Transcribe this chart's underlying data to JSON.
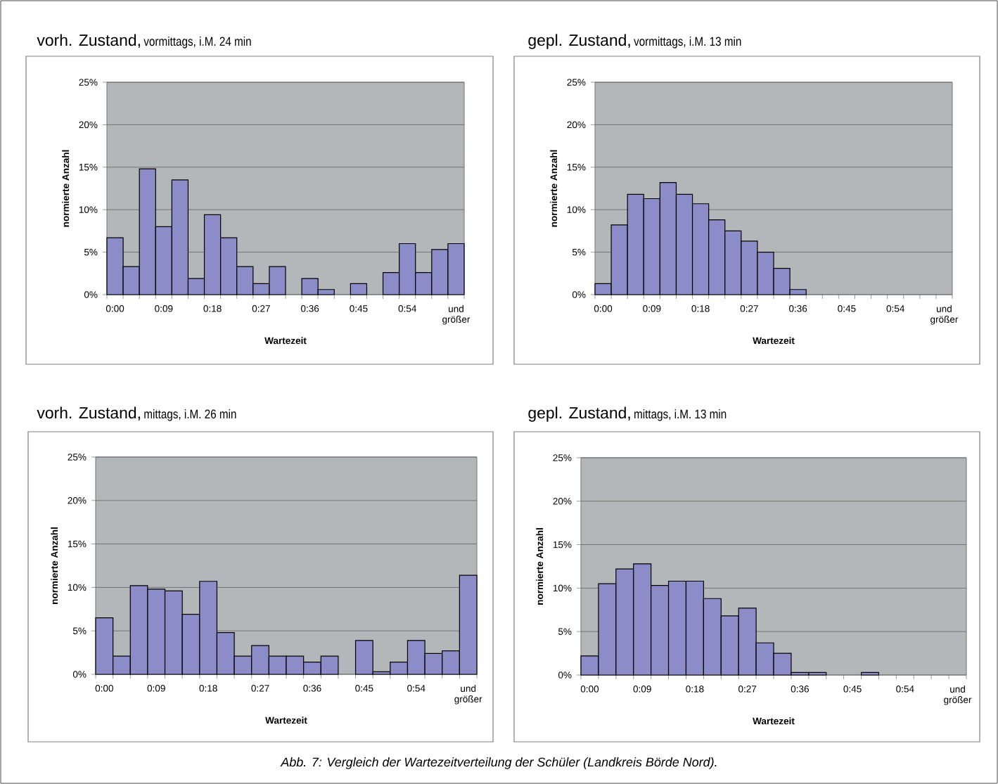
{
  "chart_data": [
    {
      "type": "bar",
      "title": "vorh. Zustand,",
      "subtitle": "vormittags, i.M. 24 min",
      "xlabel": "Wartezeit",
      "ylabel": "normierte Anzahl",
      "color": "#8c8cc8",
      "grid": "y",
      "categories": [
        "0:00",
        null,
        null,
        "0:09",
        null,
        null,
        "0:18",
        null,
        null,
        "0:27",
        null,
        null,
        "0:36",
        null,
        null,
        "0:45",
        null,
        null,
        "0:54",
        null,
        null,
        "und größer"
      ],
      "values": [
        6.7,
        3.3,
        14.8,
        8.0,
        13.5,
        1.9,
        9.4,
        6.7,
        3.3,
        1.3,
        3.3,
        0,
        1.9,
        0.6,
        0,
        1.3,
        0,
        2.6,
        6.0,
        2.6,
        5.3,
        6.0
      ],
      "ylim": [
        0,
        25
      ],
      "yticks": [
        {
          "value": 0,
          "label": "0%"
        },
        {
          "value": 5,
          "label": "5%"
        },
        {
          "value": 10,
          "label": "10%"
        },
        {
          "value": 15,
          "label": "15%"
        },
        {
          "value": 20,
          "label": "20%"
        },
        {
          "value": 25,
          "label": "25%"
        }
      ]
    },
    {
      "type": "bar",
      "title": "gepl. Zustand,",
      "subtitle": "vormittags, i.M. 13 min",
      "xlabel": "Wartezeit",
      "ylabel": "normierte Anzahl",
      "color": "#8c8cc8",
      "grid": "y",
      "categories": [
        "0:00",
        null,
        null,
        "0:09",
        null,
        null,
        "0:18",
        null,
        null,
        "0:27",
        null,
        null,
        "0:36",
        null,
        null,
        "0:45",
        null,
        null,
        "0:54",
        null,
        null,
        "und größer"
      ],
      "values": [
        1.3,
        8.2,
        11.8,
        11.3,
        13.2,
        11.8,
        10.7,
        8.8,
        7.5,
        6.3,
        5.0,
        3.1,
        0.6,
        0,
        0,
        0,
        0,
        0,
        0,
        0,
        0,
        0
      ],
      "ylim": [
        0,
        25
      ],
      "yticks": [
        {
          "value": 0,
          "label": "0%"
        },
        {
          "value": 5,
          "label": "5%"
        },
        {
          "value": 10,
          "label": "10%"
        },
        {
          "value": 15,
          "label": "15%"
        },
        {
          "value": 20,
          "label": "20%"
        },
        {
          "value": 25,
          "label": "25%"
        }
      ]
    },
    {
      "type": "bar",
      "title": "vorh. Zustand,",
      "subtitle": "mittags, i.M. 26 min",
      "xlabel": "Wartezeit",
      "ylabel": "normierte Anzahl",
      "color": "#8c8cc8",
      "grid": "y",
      "categories": [
        "0:00",
        null,
        null,
        "0:09",
        null,
        null,
        "0:18",
        null,
        null,
        "0:27",
        null,
        null,
        "0:36",
        null,
        null,
        "0:45",
        null,
        null,
        "0:54",
        null,
        null,
        "und größer"
      ],
      "values": [
        6.5,
        2.1,
        10.2,
        9.8,
        9.6,
        6.9,
        10.7,
        4.8,
        2.1,
        3.3,
        2.1,
        2.1,
        1.4,
        2.1,
        0,
        3.9,
        0.3,
        1.4,
        3.9,
        2.4,
        2.7,
        11.4
      ],
      "ylim": [
        0,
        25
      ],
      "yticks": [
        {
          "value": 0,
          "label": "0%"
        },
        {
          "value": 5,
          "label": "5%"
        },
        {
          "value": 10,
          "label": "10%"
        },
        {
          "value": 15,
          "label": "15%"
        },
        {
          "value": 20,
          "label": "20%"
        },
        {
          "value": 25,
          "label": "25%"
        }
      ]
    },
    {
      "type": "bar",
      "title": "gepl. Zustand,",
      "subtitle": "mittags, i.M. 13 min",
      "xlabel": "Wartezeit",
      "ylabel": "normierte Anzahl",
      "color": "#8c8cc8",
      "grid": "y",
      "categories": [
        "0:00",
        null,
        null,
        "0:09",
        null,
        null,
        "0:18",
        null,
        null,
        "0:27",
        null,
        null,
        "0:36",
        null,
        null,
        "0:45",
        null,
        null,
        "0:54",
        null,
        null,
        "und größer"
      ],
      "values": [
        2.2,
        10.5,
        12.2,
        12.8,
        10.3,
        10.8,
        10.8,
        8.8,
        6.8,
        7.7,
        3.7,
        2.5,
        0.3,
        0.3,
        0,
        0,
        0.3,
        0,
        0,
        0,
        0,
        0
      ],
      "ylim": [
        0,
        25
      ],
      "yticks": [
        {
          "value": 0,
          "label": "0%"
        },
        {
          "value": 5,
          "label": "5%"
        },
        {
          "value": 10,
          "label": "10%"
        },
        {
          "value": 15,
          "label": "15%"
        },
        {
          "value": 20,
          "label": "20%"
        },
        {
          "value": 25,
          "label": "25%"
        }
      ],
      "annotations": [
        "Abb. 7: Vergleich der Wartezeitverteilung der Schüler (Landkreis Börde Nord)."
      ]
    }
  ]
}
